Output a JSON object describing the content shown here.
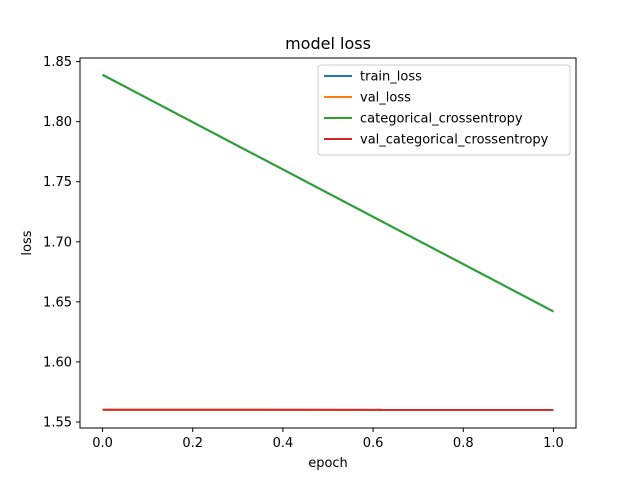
{
  "chart_data": {
    "type": "line",
    "title": "model loss",
    "xlabel": "epoch",
    "ylabel": "loss",
    "xlim": [
      -0.05,
      1.05
    ],
    "ylim": [
      1.545,
      1.853
    ],
    "xticks": [
      0.0,
      0.2,
      0.4,
      0.6,
      0.8,
      1.0
    ],
    "xtick_labels": [
      "0.0",
      "0.2",
      "0.4",
      "0.6",
      "0.8",
      "1.0"
    ],
    "yticks": [
      1.55,
      1.6,
      1.65,
      1.7,
      1.75,
      1.8,
      1.85
    ],
    "ytick_labels": [
      "1.55",
      "1.60",
      "1.65",
      "1.70",
      "1.75",
      "1.80",
      "1.85"
    ],
    "grid": false,
    "legend_position": "top-right",
    "series": [
      {
        "name": "train_loss",
        "color": "#1f77b4",
        "x": [
          0,
          1
        ],
        "y": [
          1.839,
          1.642
        ]
      },
      {
        "name": "val_loss",
        "color": "#ff7f0e",
        "x": [
          0,
          1
        ],
        "y": [
          1.5602,
          1.5601
        ]
      },
      {
        "name": "categorical_crossentropy",
        "color": "#2ca02c",
        "x": [
          0,
          1
        ],
        "y": [
          1.839,
          1.642
        ]
      },
      {
        "name": "val_categorical_crossentropy",
        "color": "#d62728",
        "x": [
          0,
          1
        ],
        "y": [
          1.5602,
          1.5601
        ]
      }
    ]
  }
}
